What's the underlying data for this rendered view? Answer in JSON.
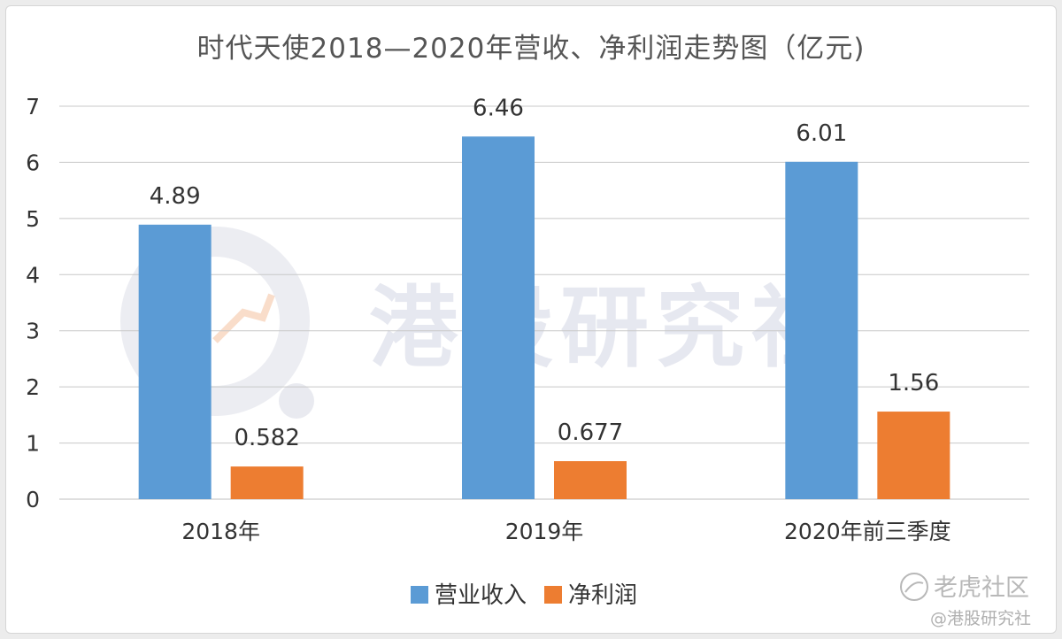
{
  "chart_data": {
    "type": "bar",
    "title": "时代天使2018—2020年营收、净利润走势图（亿元)",
    "categories": [
      "2018年",
      "2019年",
      "2020年前三季度"
    ],
    "series": [
      {
        "name": "营业收入",
        "values": [
          4.89,
          6.46,
          6.01
        ],
        "labels": [
          "4.89",
          "6.46",
          "6.01"
        ],
        "color": "#5b9bd5"
      },
      {
        "name": "净利润",
        "values": [
          0.582,
          0.677,
          1.56
        ],
        "labels": [
          "0.582",
          "0.677",
          "1.56"
        ],
        "color": "#ed7d31"
      }
    ],
    "ylim": [
      0,
      7
    ],
    "yticks": [
      0,
      1,
      2,
      3,
      4,
      5,
      6,
      7
    ],
    "grid": true,
    "legend_position": "bottom"
  },
  "watermark": {
    "text": "港股研究社"
  },
  "credits": {
    "platform": "老虎社区",
    "author": "@港股研究社"
  },
  "colors": {
    "grid": "#c8c8c8",
    "axis": "#bfbfbf"
  }
}
